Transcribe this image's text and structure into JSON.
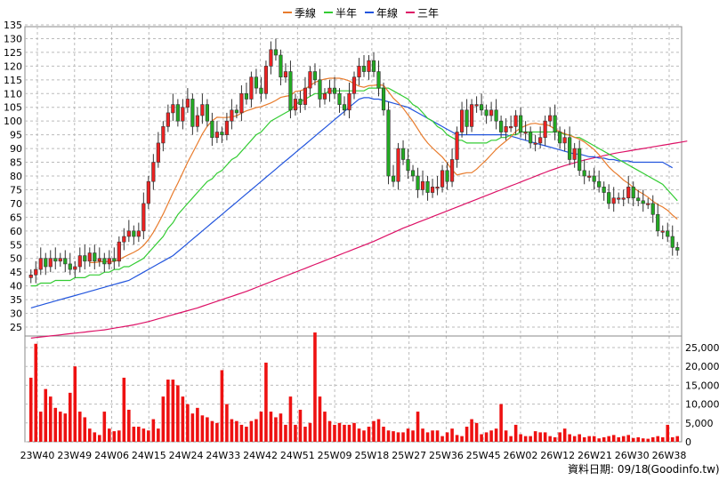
{
  "chart_data": {
    "type": "candlestick",
    "legend": [
      {
        "label": "季線",
        "color": "#e87b2c"
      },
      {
        "label": "半年",
        "color": "#33cc33"
      },
      {
        "label": "年線",
        "color": "#2255dd"
      },
      {
        "label": "三年",
        "color": "#dd1166"
      }
    ],
    "price_axis": {
      "min": 25,
      "max": 135,
      "ticks": [
        25,
        30,
        35,
        40,
        45,
        50,
        55,
        60,
        65,
        70,
        75,
        80,
        85,
        90,
        95,
        100,
        105,
        110,
        115,
        120,
        125,
        130,
        135
      ]
    },
    "volume_axis": {
      "min": 0,
      "max": 25000,
      "ticks": [
        "0",
        "5,000",
        "10,000",
        "15,000",
        "20,000",
        "25,000"
      ]
    },
    "x_labels": [
      "23W40",
      "23W49",
      "24W06",
      "24W15",
      "24W24",
      "24W33",
      "24W42",
      "24W51",
      "25W09",
      "25W18",
      "25W27",
      "25W36",
      "25W45",
      "26W02",
      "26W12",
      "26W21",
      "26W30",
      "26W38"
    ],
    "closes": [
      44,
      46,
      50,
      47,
      50,
      49,
      50,
      48,
      46,
      47,
      51,
      49,
      52,
      49,
      50,
      48,
      50,
      49,
      56,
      58,
      60,
      58,
      60,
      70,
      78,
      85,
      92,
      98,
      103,
      106,
      100,
      105,
      108,
      98,
      102,
      106,
      100,
      94,
      96,
      95,
      100,
      104,
      103,
      110,
      108,
      116,
      112,
      110,
      120,
      126,
      124,
      116,
      118,
      104,
      108,
      106,
      112,
      118,
      115,
      108,
      110,
      112,
      110,
      106,
      104,
      110,
      116,
      120,
      118,
      122,
      118,
      112,
      104,
      80,
      78,
      90,
      86,
      82,
      80,
      75,
      78,
      74,
      76,
      76,
      82,
      78,
      86,
      96,
      104,
      98,
      106,
      106,
      104,
      102,
      104,
      100,
      96,
      98,
      98,
      102,
      96,
      96,
      92,
      92,
      94,
      100,
      102,
      96,
      92,
      94,
      86,
      90,
      82,
      80,
      80,
      78,
      76,
      74,
      70,
      72,
      72,
      72,
      76,
      72,
      71,
      70,
      70,
      66,
      60,
      60,
      58,
      54,
      53
    ],
    "quarter_ma": [
      null,
      null,
      null,
      null,
      null,
      null,
      null,
      null,
      null,
      null,
      null,
      null,
      48.5,
      48.5,
      48.7,
      48.9,
      48.8,
      48.9,
      49.6,
      50.5,
      51.4,
      52.2,
      53.2,
      54.7,
      56.8,
      59.5,
      62.7,
      66.2,
      70.0,
      73.9,
      77.4,
      81.2,
      85.0,
      88.4,
      91.8,
      95.3,
      98.1,
      100.1,
      101.4,
      101.3,
      101.3,
      101.5,
      101.9,
      102.9,
      103.7,
      104.3,
      104.9,
      105.2,
      105.9,
      106.6,
      107.5,
      108.6,
      109.0,
      109.3,
      110.8,
      111.0,
      111.7,
      112.9,
      114.1,
      114.8,
      115.3,
      115.6,
      115.6,
      115.6,
      115.2,
      114.6,
      113.6,
      112.7,
      112.3,
      112.9,
      113.0,
      113.2,
      113.0,
      110.7,
      108.3,
      106.7,
      104.7,
      102.3,
      99.9,
      97.1,
      94.3,
      92.0,
      90.2,
      88.5,
      86.9,
      84.7,
      82.2,
      80.4,
      80.8,
      81.2,
      81.2,
      82.5,
      84.2,
      85.9,
      87.8,
      89.7,
      91.3,
      92.7,
      94.2,
      96.2,
      97.5,
      98.3,
      99.0,
      99.2,
      98.8,
      98.8,
      98.2,
      97.0,
      96.1,
      95.4,
      94.8,
      94.1,
      93.4,
      92.4,
      91.0,
      89.6,
      87.7,
      85.5,
      83.3,
      81.6,
      80.2,
      78.5,
      77.3,
      75.9,
      74.5,
      73.5,
      72.3,
      70.8,
      69.6,
      68.7,
      67.5,
      65.8,
      64.3
    ],
    "half_ma": [
      40,
      40,
      41,
      41,
      41,
      42,
      42,
      42,
      42,
      43,
      43,
      43,
      44,
      44,
      44,
      45,
      45,
      46,
      46,
      47,
      47,
      48,
      49,
      50,
      52,
      54,
      56,
      58,
      61,
      63,
      66,
      68,
      70,
      72,
      74,
      76,
      78,
      79,
      81,
      82,
      84,
      86,
      87,
      89,
      91,
      93,
      95,
      96,
      98,
      100,
      101,
      102,
      103,
      104,
      106,
      107,
      108,
      109,
      110,
      110,
      110,
      111,
      111,
      111,
      111,
      111,
      111,
      111,
      111,
      112,
      112,
      112,
      112,
      112,
      111,
      110,
      109,
      108,
      106,
      105,
      103,
      101,
      100,
      98,
      97,
      95,
      94,
      93,
      93,
      92,
      92,
      92,
      92,
      92,
      93,
      93,
      94,
      94,
      95,
      95,
      96,
      96,
      96,
      96,
      96,
      96,
      96,
      96,
      96,
      95,
      95,
      94,
      94,
      93,
      92,
      91,
      90,
      89,
      88,
      87,
      86,
      85,
      84,
      83,
      82,
      81,
      80,
      79,
      78,
      77,
      75,
      73,
      71
    ],
    "year_ma": [
      32,
      32.5,
      33,
      33.5,
      34,
      34.5,
      35,
      35.5,
      36,
      36.5,
      37,
      37.5,
      38,
      38.5,
      39,
      39.5,
      40,
      40.5,
      41,
      41.5,
      42,
      43,
      44,
      45,
      46,
      47,
      48,
      49,
      50,
      51,
      52.5,
      54,
      55.5,
      57,
      58.5,
      60,
      61.5,
      63,
      64.5,
      66,
      67.5,
      69,
      70.5,
      72,
      73.5,
      75,
      76.5,
      78,
      79.5,
      81,
      82.5,
      84,
      85.5,
      87,
      88.5,
      90,
      91.5,
      93,
      94.5,
      96,
      97.5,
      99,
      100.5,
      102,
      103.5,
      105,
      106.5,
      108,
      108.5,
      108.5,
      108,
      108,
      107.5,
      107,
      106.5,
      106,
      105.5,
      105,
      104,
      103,
      102,
      101,
      100,
      99,
      98,
      97,
      96,
      95,
      95,
      95,
      95,
      95,
      95,
      95,
      95,
      95,
      95,
      95,
      94.5,
      94,
      93.5,
      93,
      92.5,
      92,
      91.5,
      91,
      90.5,
      90,
      89.5,
      89,
      88.5,
      88,
      88,
      87.5,
      87,
      87,
      86.5,
      86.5,
      86,
      86,
      85.5,
      85.5,
      85.5,
      85,
      85,
      85,
      85,
      85,
      85,
      85,
      84,
      83
    ],
    "three_year_ma": [
      21,
      21.2,
      21.4,
      21.6,
      21.8,
      22,
      22.2,
      22.4,
      22.6,
      22.8,
      23,
      23.2,
      23.4,
      23.6,
      23.8,
      24,
      24.3,
      24.6,
      24.9,
      25.2,
      25.5,
      25.8,
      26.2,
      26.6,
      27,
      27.5,
      28,
      28.5,
      29,
      29.5,
      30,
      30.5,
      31,
      31.5,
      32,
      32.6,
      33.2,
      33.8,
      34.4,
      35,
      35.6,
      36.2,
      36.8,
      37.4,
      38,
      38.7,
      39.4,
      40.1,
      40.8,
      41.5,
      42.2,
      42.9,
      43.6,
      44.3,
      45,
      45.7,
      46.4,
      47.1,
      47.8,
      48.5,
      49.2,
      49.9,
      50.6,
      51.3,
      52,
      52.7,
      53.4,
      54.1,
      54.8,
      55.5,
      56.2,
      57,
      57.8,
      58.6,
      59.4,
      60.2,
      61,
      61.7,
      62.4,
      63.1,
      63.8,
      64.5,
      65.2,
      65.9,
      66.6,
      67.3,
      68,
      68.7,
      69.4,
      70.1,
      70.8,
      71.5,
      72.2,
      72.9,
      73.6,
      74.3,
      75,
      75.7,
      76.4,
      77.1,
      77.8,
      78.5,
      79.2,
      79.9,
      80.6,
      81.3,
      82,
      82.6,
      83.2,
      83.8,
      84.3,
      84.8,
      85.3,
      85.8,
      86.2,
      86.6,
      87,
      87.4,
      87.8,
      88.2,
      88.5,
      88.8,
      89.1,
      89.4,
      89.7,
      90,
      90.3,
      90.6,
      90.9,
      91.2,
      91.5,
      91.8,
      92.1,
      92.4,
      92.7
    ],
    "volumes": [
      17000,
      26000,
      8000,
      14000,
      12000,
      9000,
      8000,
      7500,
      13000,
      20000,
      8000,
      6500,
      3500,
      2500,
      1800,
      8000,
      3500,
      2800,
      3000,
      17000,
      8500,
      4000,
      4000,
      3500,
      3000,
      6000,
      3500,
      12000,
      16500,
      16500,
      15000,
      12000,
      10000,
      7500,
      9000,
      7000,
      6500,
      5500,
      5000,
      19000,
      10000,
      6000,
      5500,
      4500,
      4000,
      5500,
      6000,
      8000,
      21000,
      8000,
      6500,
      7500,
      4500,
      12000,
      4500,
      8500,
      4000,
      5000,
      29000,
      12000,
      8000,
      5500,
      4500,
      5000,
      4500,
      4500,
      5000,
      3500,
      3000,
      4000,
      5500,
      6000,
      4000,
      3000,
      2800,
      2500,
      2500,
      3500,
      3000,
      8000,
      3500,
      2500,
      3000,
      3000,
      1500,
      2500,
      3500,
      1800,
      1500,
      4000,
      6000,
      5000,
      2000,
      2500,
      3000,
      3500,
      10000,
      3000,
      1500,
      4500,
      2000,
      1500,
      1500,
      2800,
      2500,
      2500,
      1500,
      1200,
      2500,
      3500,
      2000,
      1500,
      2000,
      1200,
      1500,
      1500,
      900,
      1200,
      1500,
      1800,
      1200,
      1500,
      1800,
      1000,
      1200,
      900,
      800,
      1200,
      1500,
      1200,
      4500,
      1200,
      1500
    ]
  },
  "footer": {
    "date_label": "資料日期: 09/18",
    "source": "(Goodinfo.tw)"
  }
}
